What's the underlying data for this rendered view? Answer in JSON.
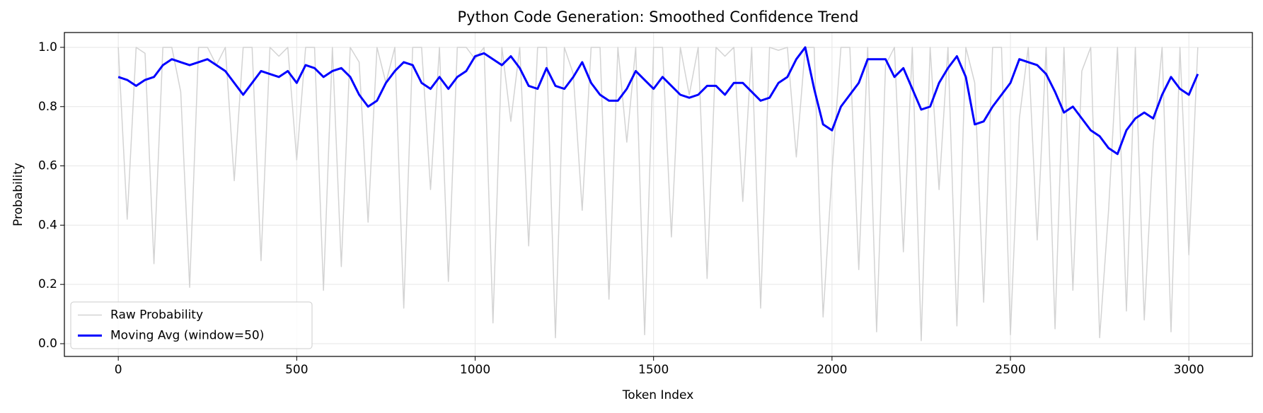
{
  "chart_data": {
    "type": "line",
    "title": "Python Code Generation: Smoothed Confidence Trend",
    "x_label": "Token Index",
    "y_label": "Probability",
    "x": [
      0,
      25,
      50,
      75,
      100,
      125,
      150,
      175,
      200,
      225,
      250,
      275,
      300,
      325,
      350,
      375,
      400,
      425,
      450,
      475,
      500,
      525,
      550,
      575,
      600,
      625,
      650,
      675,
      700,
      725,
      750,
      775,
      800,
      825,
      850,
      875,
      900,
      925,
      950,
      975,
      1000,
      1025,
      1050,
      1075,
      1100,
      1125,
      1150,
      1175,
      1200,
      1225,
      1250,
      1275,
      1300,
      1325,
      1350,
      1375,
      1400,
      1425,
      1450,
      1475,
      1500,
      1525,
      1550,
      1575,
      1600,
      1625,
      1650,
      1675,
      1700,
      1725,
      1750,
      1775,
      1800,
      1825,
      1850,
      1875,
      1900,
      1925,
      1950,
      1975,
      2000,
      2025,
      2050,
      2075,
      2100,
      2125,
      2150,
      2175,
      2200,
      2225,
      2250,
      2275,
      2300,
      2325,
      2350,
      2375,
      2400,
      2425,
      2450,
      2475,
      2500,
      2525,
      2550,
      2575,
      2600,
      2625,
      2650,
      2675,
      2700,
      2725,
      2750,
      2775,
      2800,
      2825,
      2850,
      2875,
      2900,
      2925,
      2950,
      2975,
      3000,
      3025
    ],
    "series": [
      {
        "name": "Raw Probability",
        "color": "#d3d3d3",
        "width": 1.5,
        "values": [
          1,
          0.42,
          1,
          0.98,
          0.27,
          1,
          1,
          0.85,
          0.19,
          1,
          1,
          0.94,
          1,
          0.55,
          1,
          1,
          0.28,
          1,
          0.97,
          1,
          0.62,
          1,
          1,
          0.18,
          1,
          0.26,
          1,
          0.95,
          0.41,
          1,
          0.88,
          1,
          0.12,
          1,
          1,
          0.52,
          1,
          0.21,
          1,
          1,
          0.96,
          1,
          0.07,
          1,
          0.75,
          1,
          0.33,
          1,
          1,
          0.02,
          1,
          0.91,
          0.45,
          1,
          1,
          0.15,
          1,
          0.68,
          1,
          0.03,
          1,
          1,
          0.36,
          1,
          0.84,
          1,
          0.22,
          1,
          0.97,
          1,
          0.48,
          1,
          0.12,
          1,
          0.99,
          1,
          0.63,
          1,
          1,
          0.09,
          0.58,
          1,
          1,
          0.25,
          1,
          0.04,
          0.94,
          1,
          0.31,
          1,
          0.01,
          1,
          0.52,
          1,
          0.06,
          1,
          0.88,
          0.14,
          1,
          1,
          0.03,
          0.76,
          1,
          0.35,
          1,
          0.05,
          1,
          0.18,
          0.92,
          1,
          0.02,
          0.45,
          1,
          0.11,
          1,
          0.08,
          0.67,
          1,
          0.04,
          1,
          0.3,
          1
        ]
      },
      {
        "name": "Moving Avg (window=50)",
        "color": "#0000ff",
        "width": 3,
        "values": [
          0.9,
          0.89,
          0.87,
          0.89,
          0.9,
          0.94,
          0.96,
          0.95,
          0.94,
          0.95,
          0.96,
          0.94,
          0.92,
          0.88,
          0.84,
          0.88,
          0.92,
          0.91,
          0.9,
          0.92,
          0.88,
          0.94,
          0.93,
          0.9,
          0.92,
          0.93,
          0.9,
          0.84,
          0.8,
          0.82,
          0.88,
          0.92,
          0.95,
          0.94,
          0.88,
          0.86,
          0.9,
          0.86,
          0.9,
          0.92,
          0.97,
          0.98,
          0.96,
          0.94,
          0.97,
          0.93,
          0.87,
          0.86,
          0.93,
          0.87,
          0.86,
          0.9,
          0.95,
          0.88,
          0.84,
          0.82,
          0.82,
          0.86,
          0.92,
          0.89,
          0.86,
          0.9,
          0.87,
          0.84,
          0.83,
          0.84,
          0.87,
          0.87,
          0.84,
          0.88,
          0.88,
          0.85,
          0.82,
          0.83,
          0.88,
          0.9,
          0.96,
          1.0,
          0.86,
          0.74,
          0.72,
          0.8,
          0.84,
          0.88,
          0.96,
          0.96,
          0.96,
          0.9,
          0.93,
          0.86,
          0.79,
          0.8,
          0.88,
          0.93,
          0.97,
          0.9,
          0.74,
          0.75,
          0.8,
          0.84,
          0.88,
          0.96,
          0.95,
          0.94,
          0.91,
          0.85,
          0.78,
          0.8,
          0.76,
          0.72,
          0.7,
          0.66,
          0.64,
          0.72,
          0.76,
          0.78,
          0.76,
          0.84,
          0.9,
          0.86,
          0.84,
          0.91
        ]
      }
    ],
    "xlim": [
      -151,
      3178
    ],
    "ylim": [
      -0.043,
      1.05
    ],
    "xticks": [
      0,
      500,
      1000,
      1500,
      2000,
      2500,
      3000
    ],
    "yticks": [
      {
        "value": 0,
        "label": "0.0"
      },
      0.2,
      0.4,
      0.6,
      0.8,
      {
        "value": 1,
        "label": "1.0"
      }
    ],
    "grid": true,
    "legend": "lower left"
  }
}
